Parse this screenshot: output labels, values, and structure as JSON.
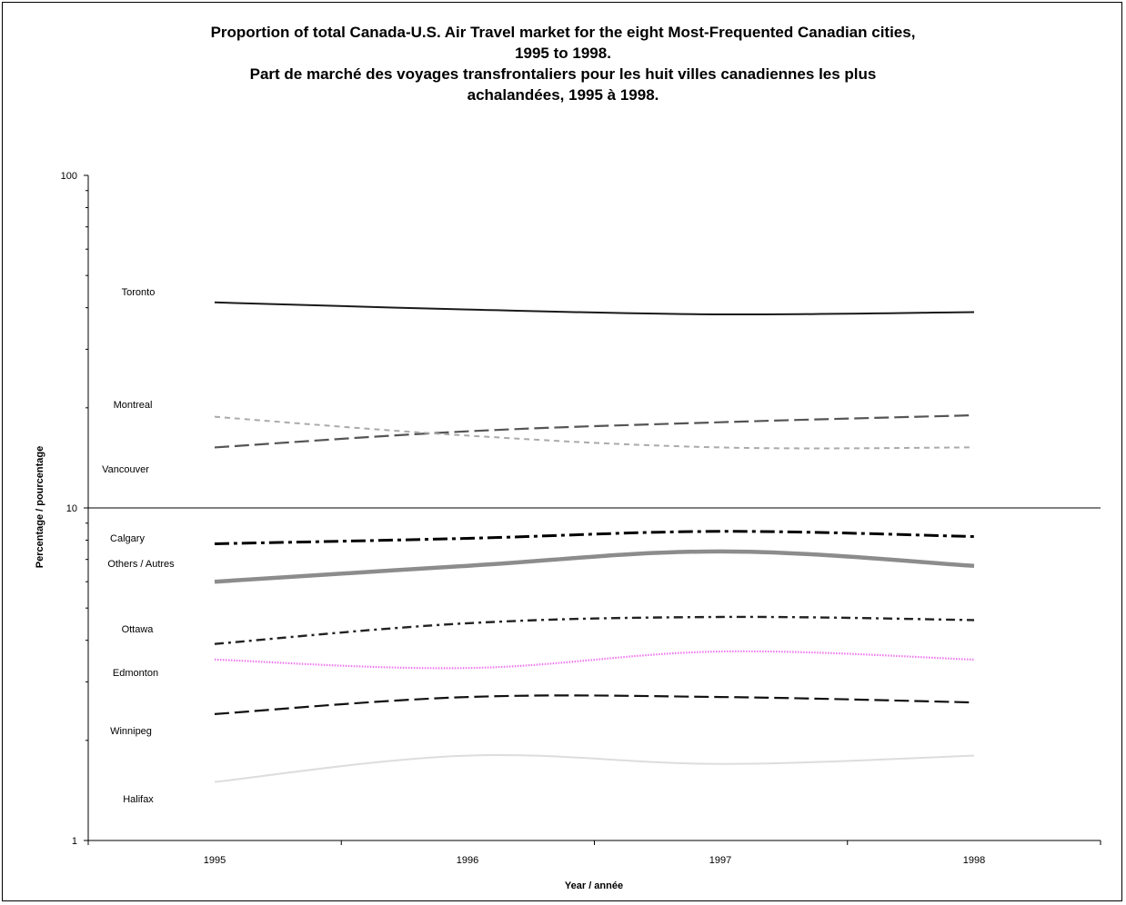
{
  "chart_data": {
    "type": "line",
    "title_lines": [
      "Proportion of total Canada-U.S. Air Travel market for the eight Most-Frequented Canadian cities,",
      "1995 to 1998.",
      "Part de marché des voyages transfrontaliers pour les huit villes canadiennes les plus",
      "achalandées, 1995 à 1998."
    ],
    "xlabel": "Year / année",
    "ylabel": "Percentage / pourcentage",
    "y_scale": "log",
    "ylim": [
      1,
      100
    ],
    "y_ticks": [
      {
        "value": 1,
        "label": "1"
      },
      {
        "value": 10,
        "label": "10"
      },
      {
        "value": 100,
        "label": "100"
      }
    ],
    "categories": [
      "1995",
      "1996",
      "1997",
      "1998"
    ],
    "grid": false,
    "series": [
      {
        "name": "Toronto",
        "values": [
          41.5,
          39.5,
          38.2,
          38.8
        ],
        "color": "#1a1a1a",
        "style": "solid"
      },
      {
        "name": "Montreal",
        "values": [
          15.2,
          17.0,
          18.1,
          19.0
        ],
        "color": "#555555",
        "style": "long-dash"
      },
      {
        "name": "Vancouver",
        "values": [
          18.8,
          16.5,
          15.2,
          15.2
        ],
        "color": "#aaaaaa",
        "style": "short-dash"
      },
      {
        "name": "Calgary",
        "values": [
          7.8,
          8.1,
          8.5,
          8.2
        ],
        "color": "#000000",
        "style": "dash-dot"
      },
      {
        "name": "Others / Autres",
        "values": [
          6.0,
          6.7,
          7.4,
          6.7
        ],
        "color": "#8c8c8c",
        "style": "thick-solid"
      },
      {
        "name": "Ottawa",
        "values": [
          3.9,
          4.5,
          4.7,
          4.6
        ],
        "color": "#222222",
        "style": "dash-dot-small"
      },
      {
        "name": "Edmonton",
        "values": [
          3.5,
          3.3,
          3.7,
          3.5
        ],
        "color": "#ee77ee",
        "style": "dotted"
      },
      {
        "name": "Winnipeg",
        "values": [
          2.4,
          2.7,
          2.7,
          2.6
        ],
        "color": "#111111",
        "style": "long-dash"
      },
      {
        "name": "Halifax",
        "values": [
          1.5,
          1.8,
          1.7,
          1.8
        ],
        "color": "#dddddd",
        "style": "solid"
      }
    ],
    "series_label_order": [
      "Toronto",
      "Montreal",
      "Vancouver",
      "Calgary",
      "Others / Autres",
      "Ottawa",
      "Edmonton",
      "Winnipeg",
      "Halifax"
    ]
  }
}
